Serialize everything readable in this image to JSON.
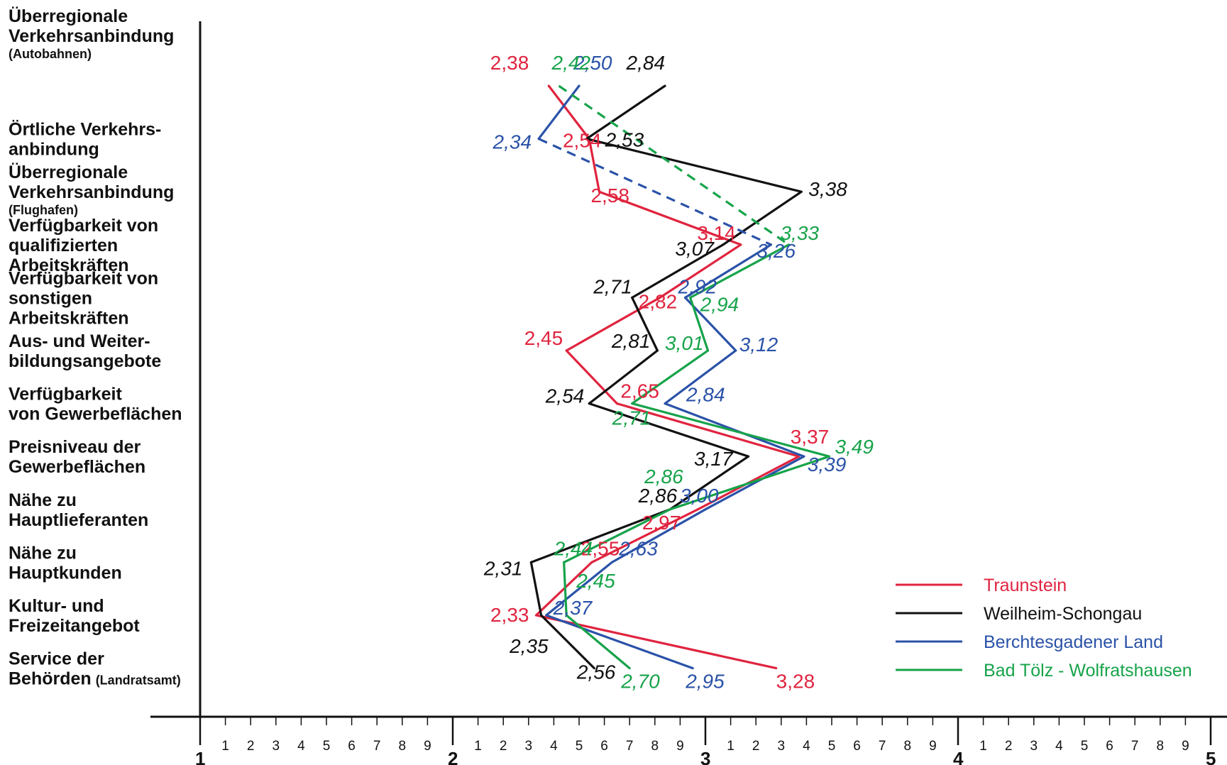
{
  "chart_data": {
    "type": "line",
    "orientation": "horizontal-profile",
    "x_range": [
      1,
      5
    ],
    "x_major_ticks": [
      "1",
      "2",
      "3",
      "4",
      "5"
    ],
    "x_minor_ticks": [
      "1",
      "2",
      "3",
      "4",
      "5",
      "6",
      "7",
      "8",
      "9"
    ],
    "grid": false,
    "legend_position": "bottom-right",
    "categories": [
      {
        "lines": [
          "Überregionale",
          "Verkehrsanbindung"
        ],
        "sub": "(Autobahnen)"
      },
      {
        "lines": [
          "Örtliche Verkehrs-",
          "anbindung"
        ]
      },
      {
        "lines": [
          "Überregionale",
          "Verkehrsanbindung"
        ],
        "sub": "(Flughafen)"
      },
      {
        "lines": [
          "Verfügbarkeit von",
          "qualifizierten",
          "Arbeitskräften"
        ]
      },
      {
        "lines": [
          "Verfügbarkeit von",
          "sonstigen",
          "Arbeitskräften"
        ]
      },
      {
        "lines": [
          "Aus- und Weiter-",
          "bildungsangebote"
        ]
      },
      {
        "lines": [
          "Verfügbarkeit",
          "von Gewerbeflächen"
        ]
      },
      {
        "lines": [
          "Preisniveau der",
          "Gewerbeflächen"
        ]
      },
      {
        "lines": [
          "Nähe zu",
          "Hauptlieferanten"
        ]
      },
      {
        "lines": [
          "Nähe zu",
          "Hauptkunden"
        ]
      },
      {
        "lines": [
          "Kultur- und",
          "Freizeitangebot"
        ]
      },
      {
        "lines": [
          "Service der",
          "Behörden"
        ],
        "inline_sub": "(Landratsamt)"
      }
    ],
    "series": [
      {
        "name": "Traunstein",
        "color": "#e0243f",
        "values": [
          2.38,
          2.54,
          2.58,
          3.14,
          2.82,
          2.45,
          2.65,
          3.37,
          2.97,
          2.55,
          2.33,
          3.28
        ],
        "labels": [
          "2,38",
          "2,54",
          "2,58",
          "3,14",
          "2,82",
          "2,45",
          "2,65",
          "3,37",
          "2,97",
          "2,55",
          "2,33",
          "3,28"
        ]
      },
      {
        "name": "Weilheim-Schongau",
        "color": "#111111",
        "values": [
          2.84,
          2.53,
          3.38,
          3.07,
          2.71,
          2.81,
          2.54,
          3.17,
          2.86,
          2.31,
          2.35,
          2.56
        ],
        "labels": [
          "2,84",
          "2,53",
          "3,38",
          "3,07",
          "2,71",
          "2,81",
          "2,54",
          "3,17",
          "2,86",
          "2,31",
          "2,35",
          "2,56"
        ]
      },
      {
        "name": "Berchtesgadener Land",
        "color": "#2a52a8",
        "values": [
          2.5,
          2.34,
          null,
          3.26,
          2.92,
          3.12,
          2.84,
          3.39,
          3.0,
          2.63,
          2.37,
          2.95
        ],
        "labels": [
          "2,50",
          "2,34",
          "",
          "3,26",
          "2,92",
          "3,12",
          "2,84",
          "3,39",
          "3,00",
          "2,63",
          "2,37",
          "2,95"
        ]
      },
      {
        "name": "Bad Tölz - Wolfratshausen",
        "color": "#17a34a",
        "values": [
          2.42,
          null,
          null,
          3.33,
          2.94,
          3.01,
          2.71,
          3.49,
          2.86,
          2.44,
          2.45,
          2.7
        ],
        "labels": [
          "2,42",
          "",
          "",
          "3,33",
          "2,94",
          "3,01",
          "2,71",
          "3,49",
          "2,86",
          "2,44",
          "2,45",
          "2,70"
        ]
      }
    ]
  }
}
